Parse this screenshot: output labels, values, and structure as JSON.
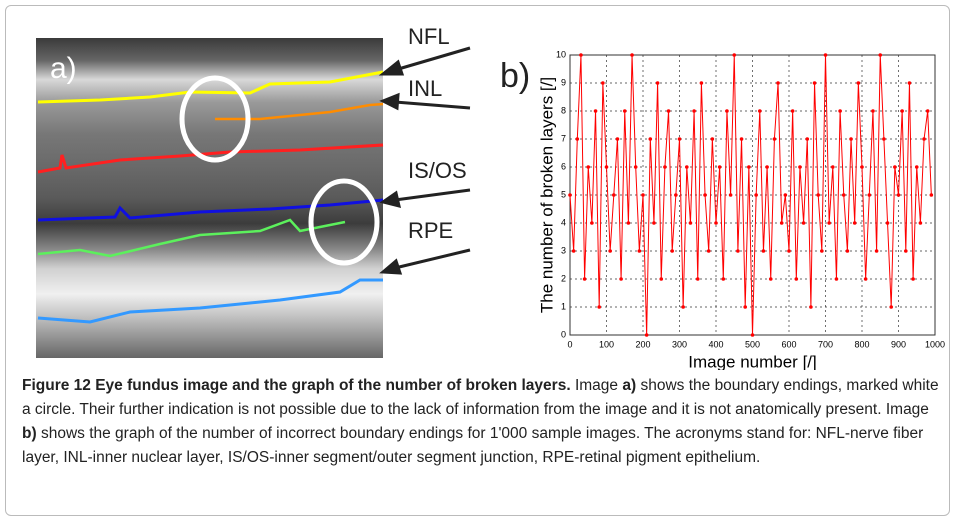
{
  "image_panel": {
    "panel_label": "a)",
    "layer_labels": [
      "NFL",
      "INL",
      "IS/OS",
      "RPE"
    ]
  },
  "chart_data": {
    "type": "line",
    "panel_label": "b)",
    "x_label": "Image number [/]",
    "y_label": "The number of broken layers [/]",
    "color": "#ff0000",
    "grid": true,
    "xlim": [
      0,
      1000
    ],
    "xticks": [
      0,
      100,
      200,
      300,
      400,
      500,
      600,
      700,
      800,
      900,
      1000
    ],
    "ylim": [
      0,
      10
    ],
    "yticks": [
      0,
      1,
      2,
      3,
      4,
      5,
      6,
      7,
      8,
      9,
      10
    ],
    "x": [
      0,
      10,
      20,
      30,
      40,
      50,
      60,
      70,
      80,
      90,
      100,
      110,
      120,
      130,
      140,
      150,
      160,
      170,
      180,
      190,
      200,
      210,
      220,
      230,
      240,
      250,
      260,
      270,
      280,
      290,
      300,
      310,
      320,
      330,
      340,
      350,
      360,
      370,
      380,
      390,
      400,
      410,
      420,
      430,
      440,
      450,
      460,
      470,
      480,
      490,
      500,
      510,
      520,
      530,
      540,
      550,
      560,
      570,
      580,
      590,
      600,
      610,
      620,
      630,
      640,
      650,
      660,
      670,
      680,
      690,
      700,
      710,
      720,
      730,
      740,
      750,
      760,
      770,
      780,
      790,
      800,
      810,
      820,
      830,
      840,
      850,
      860,
      870,
      880,
      890,
      900,
      910,
      920,
      930,
      940,
      950,
      960,
      970,
      980,
      990
    ],
    "values": [
      5,
      3,
      7,
      10,
      2,
      6,
      4,
      8,
      1,
      9,
      6,
      3,
      5,
      7,
      2,
      8,
      4,
      10,
      6,
      3,
      5,
      0,
      7,
      4,
      9,
      2,
      6,
      8,
      3,
      5,
      7,
      1,
      6,
      4,
      8,
      2,
      9,
      5,
      3,
      7,
      4,
      6,
      2,
      8,
      5,
      10,
      3,
      7,
      1,
      6,
      0,
      5,
      8,
      3,
      6,
      2,
      7,
      9,
      4,
      5,
      3,
      8,
      2,
      6,
      4,
      7,
      1,
      9,
      5,
      3,
      10,
      4,
      6,
      2,
      8,
      5,
      3,
      7,
      4,
      9,
      6,
      2,
      5,
      8,
      3,
      10,
      7,
      4,
      1,
      6,
      5,
      8,
      3,
      9,
      2,
      6,
      4,
      7,
      8,
      5
    ]
  },
  "caption": {
    "title": "Figure 12 Eye fundus image and the graph of the number of broken layers.",
    "segments": [
      {
        "text": "Image",
        "bold": false
      },
      {
        "text": "a)",
        "bold": true
      },
      {
        "text": "shows the boundary endings, marked white a circle. Their further indication is not possible due to the lack of information from the image and it is not anatomically present. Image",
        "bold": false
      },
      {
        "text": "b)",
        "bold": true
      },
      {
        "text": "shows the graph of the number of incorrect boundary endings for 1'000 sample images. The acronyms stand for: NFL-nerve fiber layer, INL-inner nuclear layer, IS/OS-inner segment/outer segment junction, RPE-retinal pigment epithelium.",
        "bold": false
      }
    ]
  }
}
